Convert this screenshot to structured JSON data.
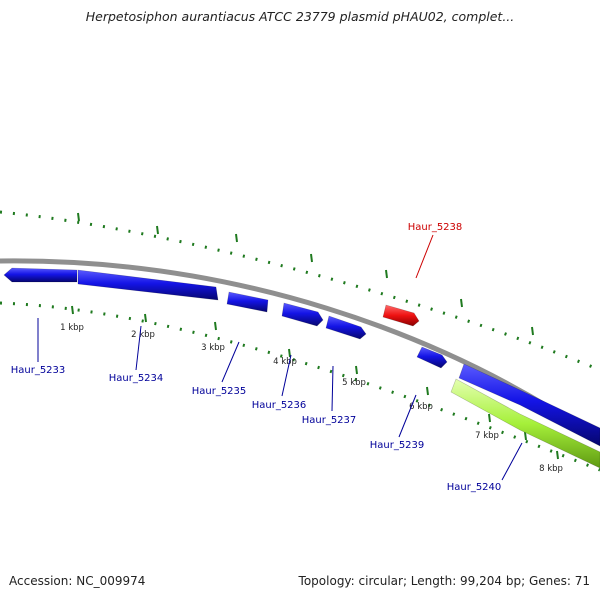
{
  "title": "Herpetosiphon aurantiacus ATCC 23779 plasmid pHAU02, complet...",
  "footer": {
    "accession_label": "Accession: NC_009974",
    "stats_label": "Topology: circular; Length: 99,204 bp; Genes: 71"
  },
  "colors": {
    "forward_gene": "#1414e6",
    "highlight_gene": "#ee1111",
    "lime_feature": "#a6f03a",
    "backbone": "#8f8f8f",
    "tick": "#1f7a1f",
    "label_blue": "#000099",
    "label_red": "#cc0000"
  },
  "scale_labels": [
    "1 kbp",
    "2 kbp",
    "3 kbp",
    "4 kbp",
    "5 kbp",
    "6 kbp",
    "7 kbp",
    "8 kbp"
  ],
  "genes": [
    {
      "name": "Haur_5233",
      "color": "blue"
    },
    {
      "name": "Haur_5234",
      "color": "blue"
    },
    {
      "name": "Haur_5235",
      "color": "blue"
    },
    {
      "name": "Haur_5236",
      "color": "blue"
    },
    {
      "name": "Haur_5237",
      "color": "blue"
    },
    {
      "name": "Haur_5238",
      "color": "red"
    },
    {
      "name": "Haur_5239",
      "color": "blue"
    },
    {
      "name": "Haur_5240",
      "color": "blue"
    }
  ]
}
